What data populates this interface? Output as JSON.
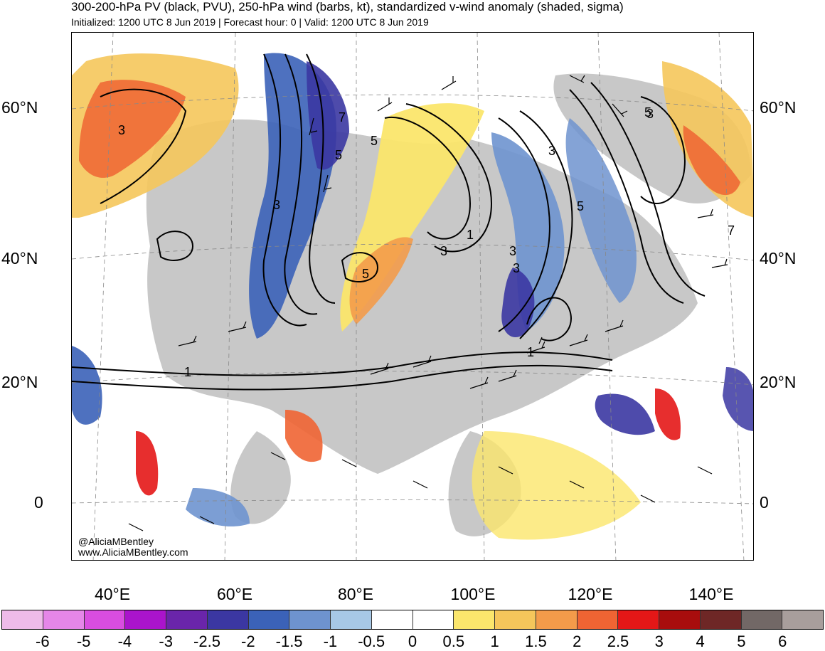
{
  "title": "300-200-hPa PV (black, PVU), 250-hPa wind (barbs, kt), standardized v-wind anomaly (shaded, sigma)",
  "subtitle": "Initialized: 1200 UTC 8 Jun 2019 | Forecast hour: 0 | Valid: 1200 UTC 8 Jun 2019",
  "credit": {
    "handle": "@AliciaMBentley",
    "website": "www.AliciaMBentley.com"
  },
  "map": {
    "lat_labels": [
      "60°N",
      "40°N",
      "20°N",
      "0"
    ],
    "lon_labels": [
      "40°E",
      "60°E",
      "80°E",
      "100°E",
      "120°E",
      "140°E"
    ],
    "contour_labels": [
      "3",
      "3",
      "5",
      "7",
      "5",
      "1",
      "3",
      "5",
      "3",
      "3",
      "1",
      "5",
      "3",
      "5",
      "7",
      "3",
      "1"
    ],
    "land_color": "#c8c8c8",
    "contour_color": "#000000"
  },
  "colorbar": {
    "labels": [
      "-6",
      "-5",
      "-4",
      "-3",
      "-2.5",
      "-2",
      "-1.5",
      "-1",
      "-0.5",
      "0",
      "0.5",
      "1",
      "1.5",
      "2",
      "2.5",
      "3",
      "4",
      "5",
      "6"
    ],
    "colors": [
      "#eebbe9",
      "#e586e8",
      "#d94de0",
      "#aa14cc",
      "#6a25aa",
      "#3b37a2",
      "#3b62b8",
      "#6e93cf",
      "#a7c8e6",
      "#ffffff",
      "#ffffff",
      "#fbe66c",
      "#f5c65b",
      "#f39b4a",
      "#ef6433",
      "#e41717",
      "#a80d0d",
      "#6e2726",
      "#726866",
      "#a89e9c"
    ]
  }
}
